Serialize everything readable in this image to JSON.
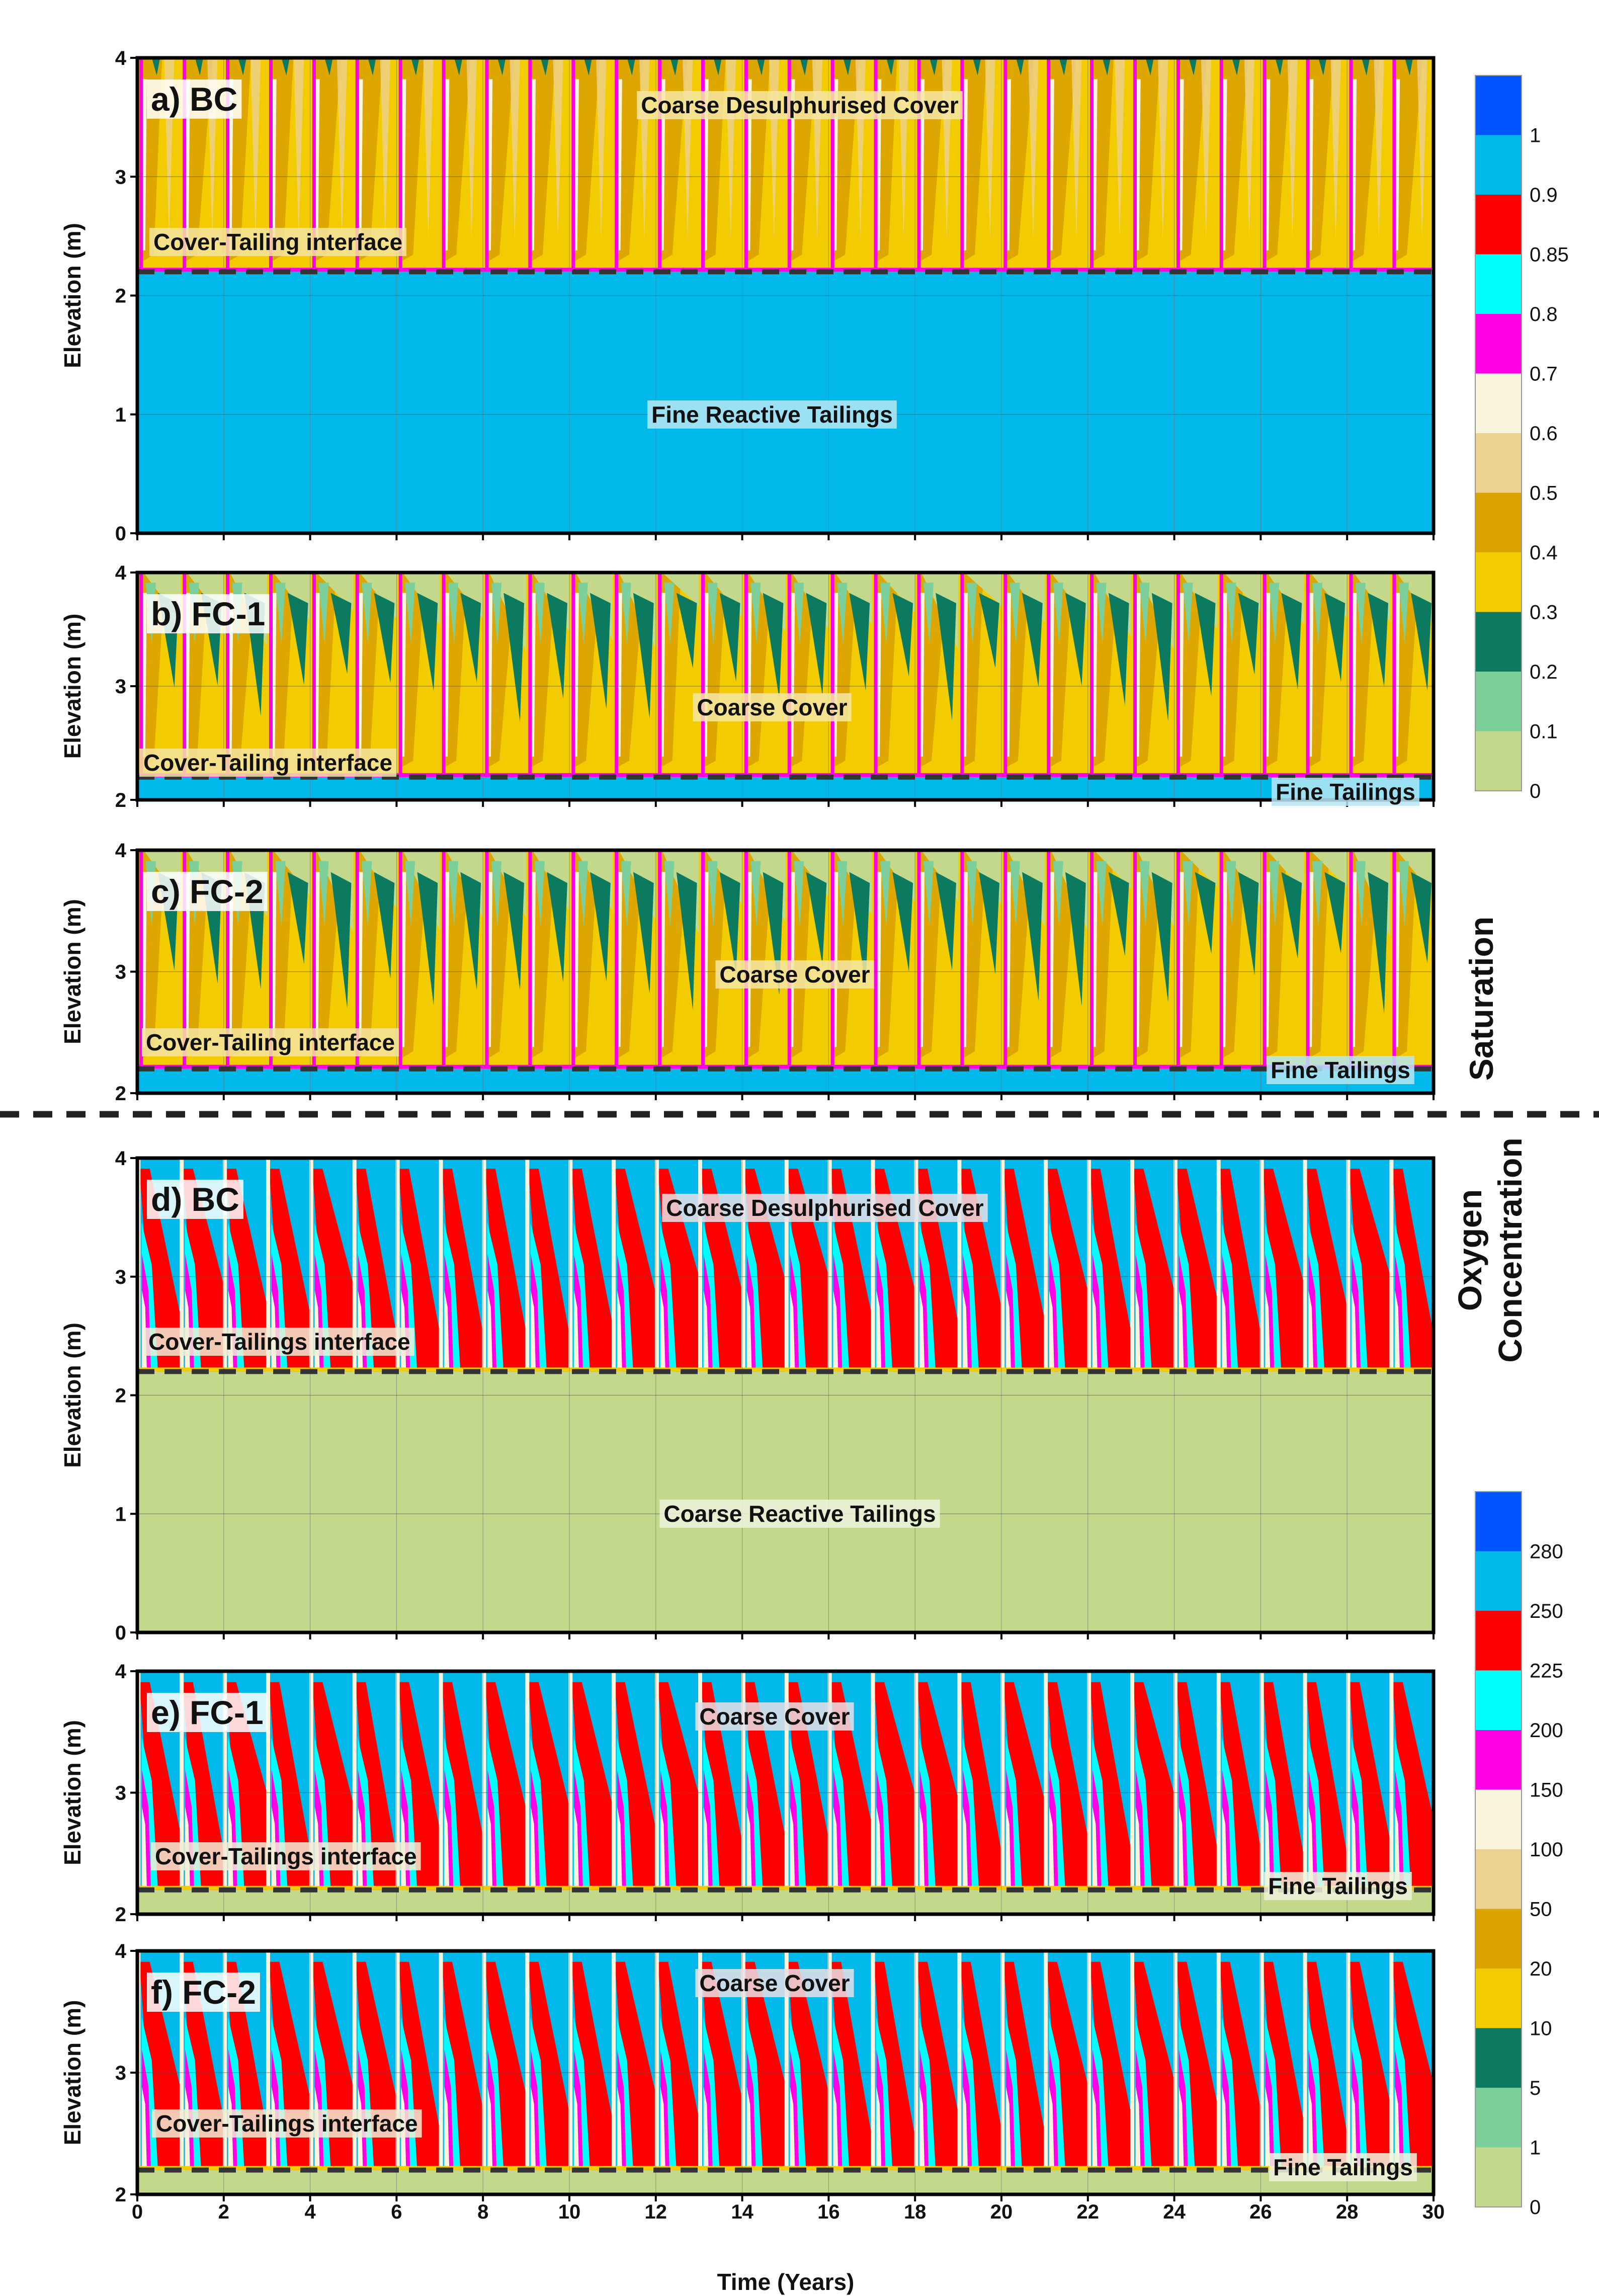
{
  "chart_data": {
    "type": "heatmap",
    "x_axis": {
      "label": "Time (Years)",
      "range": [
        0,
        30
      ],
      "ticks": [
        "0",
        "2",
        "4",
        "6",
        "8",
        "10",
        "12",
        "14",
        "16",
        "18",
        "20",
        "22",
        "24",
        "26",
        "28",
        "30"
      ]
    },
    "y_axis_label": "Elevation (m)",
    "interface_elevation_m": 2.2,
    "cycles_per_year": 1,
    "panels": [
      {
        "id": "a",
        "label": "a) BC",
        "variable": "saturation",
        "ylim": [
          0,
          4
        ],
        "yticks": [
          "0",
          "1",
          "2",
          "3",
          "4"
        ],
        "cover_label": "Coarse Desulphurised Cover",
        "interface_label": "Cover-Tailing interface",
        "tailings_label": "Fine Reactive Tailings",
        "dominant_cover_level": 0.3,
        "tailings_level": 0.9
      },
      {
        "id": "b",
        "label": "b) FC-1",
        "variable": "saturation",
        "ylim": [
          2,
          4
        ],
        "yticks": [
          "2",
          "3",
          "4"
        ],
        "cover_label": "Coarse Cover",
        "interface_label": "Cover-Tailing interface",
        "tailings_label": "Fine Tailings",
        "dominant_cover_level": 0.3,
        "tailings_level": 0.9
      },
      {
        "id": "c",
        "label": "c) FC-2",
        "variable": "saturation",
        "ylim": [
          2,
          4
        ],
        "yticks": [
          "2",
          "3",
          "4"
        ],
        "cover_label": "Coarse Cover",
        "interface_label": "Cover-Tailing interface",
        "tailings_label": "Fine Tailings",
        "dominant_cover_level": 0.3,
        "tailings_level": 0.9
      },
      {
        "id": "d",
        "label": "d) BC",
        "variable": "oxygen_concentration",
        "ylim": [
          0,
          4
        ],
        "yticks": [
          "0",
          "1",
          "2",
          "3",
          "4"
        ],
        "cover_label": "Coarse Desulphurised Cover",
        "interface_label": "Cover-Tailings interface",
        "tailings_label": "Coarse Reactive Tailings",
        "dominant_cover_level": 225,
        "tailings_level": 0
      },
      {
        "id": "e",
        "label": "e) FC-1",
        "variable": "oxygen_concentration",
        "ylim": [
          2,
          4
        ],
        "yticks": [
          "2",
          "3",
          "4"
        ],
        "cover_label": "Coarse Cover",
        "interface_label": "Cover-Tailings interface",
        "tailings_label": "Fine Tailings",
        "dominant_cover_level": 250,
        "tailings_level": 0
      },
      {
        "id": "f",
        "label": "f) FC-2",
        "variable": "oxygen_concentration",
        "ylim": [
          2,
          4
        ],
        "yticks": [
          "2",
          "3",
          "4"
        ],
        "cover_label": "Coarse Cover",
        "interface_label": "Cover-Tailings interface",
        "tailings_label": "Fine Tailings",
        "dominant_cover_level": 250,
        "tailings_level": 0
      }
    ],
    "saturation_legend": {
      "title": "Saturation",
      "levels": [
        "0",
        "0.1",
        "0.2",
        "0.3",
        "0.4",
        "0.5",
        "0.6",
        "0.7",
        "0.8",
        "0.85",
        "0.9",
        "1"
      ],
      "colors": [
        "#c4d88c",
        "#7ccf9a",
        "#0b7a5f",
        "#f2cc00",
        "#dca300",
        "#ecd190",
        "#f8f5dc",
        "#ff00e6",
        "#00ffff",
        "#ff0000",
        "#00b8ea",
        "#0055ff"
      ]
    },
    "oxygen_legend": {
      "title_line1": "Oxygen",
      "title_line2": "Concentration",
      "levels": [
        "0",
        "1",
        "5",
        "10",
        "20",
        "50",
        "100",
        "150",
        "200",
        "225",
        "250",
        "280"
      ],
      "colors": [
        "#c4d88c",
        "#7ccf9a",
        "#0b7a5f",
        "#f2cc00",
        "#dca300",
        "#ecd190",
        "#f8f5dc",
        "#ff00e6",
        "#00ffff",
        "#ff0000",
        "#00b8ea",
        "#0055ff"
      ]
    }
  }
}
